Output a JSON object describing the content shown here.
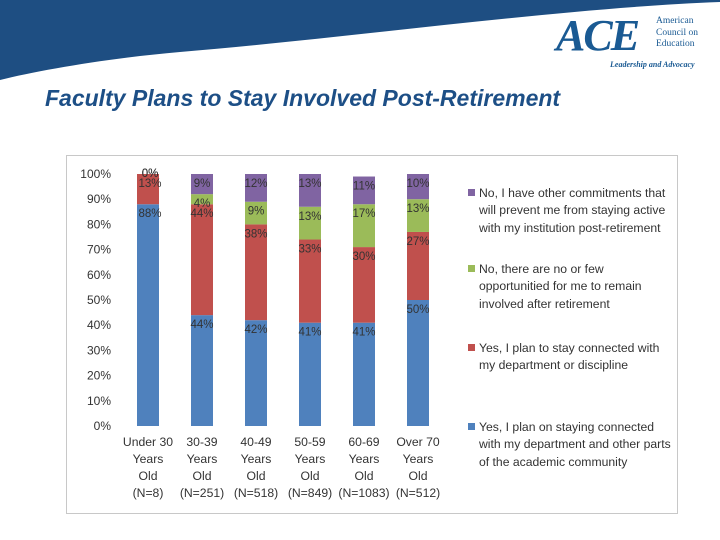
{
  "logo": {
    "acronym": "ACE",
    "name_lines": [
      "American",
      "Council on",
      "Education"
    ],
    "tagline": "Leadership and Advocacy"
  },
  "slide_title": "Faculty Plans to Stay Involved Post-Retirement",
  "colors": {
    "header_wave": "#1e4e82",
    "series": [
      "#4f81bd",
      "#c0504d",
      "#9bbb59",
      "#8064a2"
    ]
  },
  "chart_data": {
    "type": "bar",
    "stacked": true,
    "title": "",
    "xlabel": "",
    "ylabel": "",
    "ylim": [
      0,
      100
    ],
    "grid": false,
    "legend_position": "right",
    "y_ticks": [
      "0%",
      "10%",
      "20%",
      "30%",
      "40%",
      "50%",
      "60%",
      "70%",
      "80%",
      "90%",
      "100%"
    ],
    "categories": [
      [
        "Under 30",
        "Years",
        "Old",
        "(N=8)"
      ],
      [
        "30-39",
        "Years",
        "Old",
        "(N=251)"
      ],
      [
        "40-49",
        "Years",
        "Old",
        "(N=518)"
      ],
      [
        "50-59",
        "Years",
        "Old",
        "(N=849)"
      ],
      [
        "60-69",
        "Years",
        "Old",
        "(N=1083)"
      ],
      [
        "Over 70",
        "Years",
        "Old",
        "(N=512)"
      ]
    ],
    "series": [
      {
        "name": "Yes, I plan on staying connected with my department and other parts of the academic community",
        "color": "#4f81bd",
        "values": [
          88,
          44,
          42,
          41,
          41,
          50
        ],
        "labels": [
          "88%",
          "44%",
          "42%",
          "41%",
          "41%",
          "50%"
        ]
      },
      {
        "name": "Yes, I plan to stay connected with my department or discipline",
        "color": "#c0504d",
        "values": [
          13,
          44,
          38,
          33,
          30,
          27
        ],
        "labels": [
          "13%",
          "44%",
          "38%",
          "33%",
          "30%",
          "27%"
        ]
      },
      {
        "name": "No, there are no or few opportunitied for me to remain involved after retirement",
        "color": "#9bbb59",
        "values": [
          0,
          4,
          9,
          13,
          17,
          13
        ],
        "labels": [
          "0%",
          "4%",
          "9%",
          "13%",
          "17%",
          "13%"
        ]
      },
      {
        "name": "No, I have other commitments that will prevent me from staying active with my institution post-retirement",
        "color": "#8064a2",
        "values": [
          0,
          9,
          12,
          13,
          11,
          10
        ],
        "labels": [
          "0%",
          "9%",
          "12%",
          "13%",
          "11%",
          "10%"
        ]
      }
    ],
    "legend_order": [
      3,
      2,
      1,
      0
    ]
  }
}
